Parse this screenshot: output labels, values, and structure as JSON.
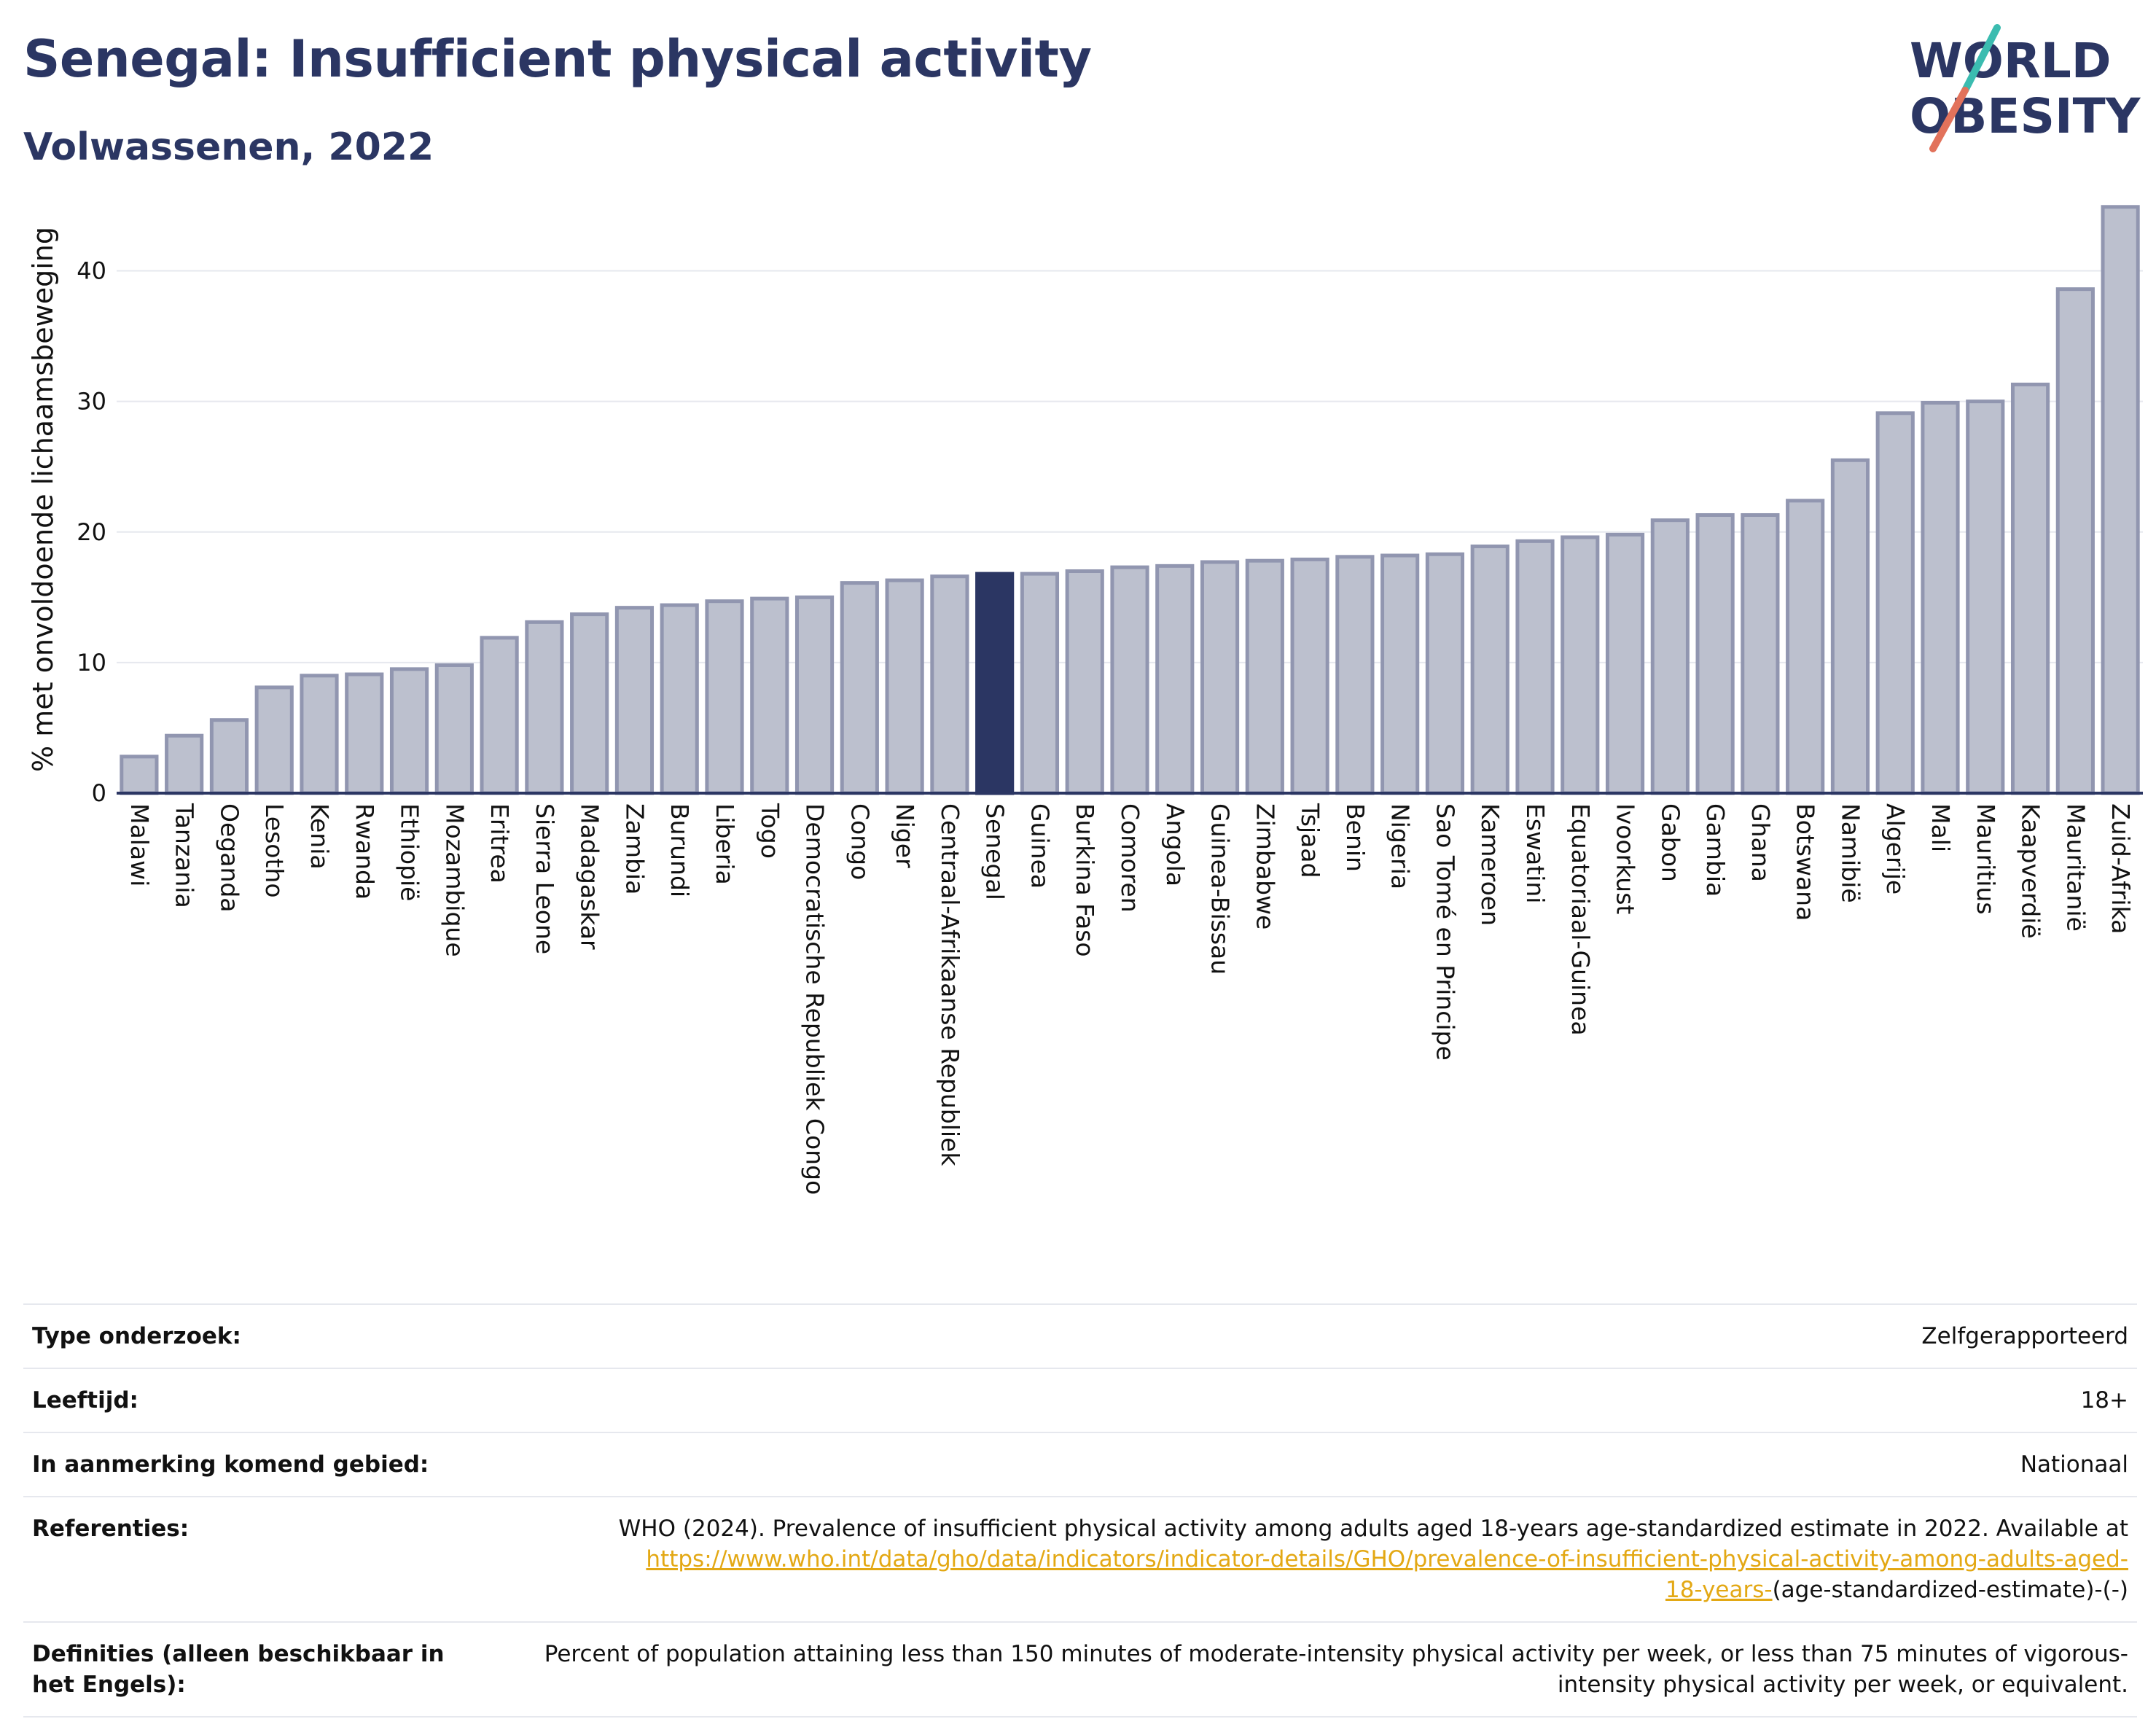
{
  "header": {
    "title": "Senegal: Insufficient physical activity",
    "subtitle": "Volwassenen, 2022"
  },
  "logo": {
    "line1": "WORLD",
    "line2": "OBESITY"
  },
  "chart_data": {
    "type": "bar",
    "title": "Senegal: Insufficient physical activity",
    "subtitle": "Volwassenen, 2022",
    "xlabel": "",
    "ylabel": "% met onvoldoende lichaamsbeweging",
    "ylim": [
      0,
      45
    ],
    "yticks": [
      0,
      10,
      20,
      30,
      40
    ],
    "grid": true,
    "highlight": "Senegal",
    "colors": {
      "bar": "#bcc0ce",
      "bar_border": "#9196b0",
      "highlight": "#2b3663",
      "axis": "#2b3663",
      "grid": "#e6e8ee"
    },
    "categories": [
      "Malawi",
      "Tanzania",
      "Oeganda",
      "Lesotho",
      "Kenia",
      "Rwanda",
      "Ethiopië",
      "Mozambique",
      "Eritrea",
      "Sierra Leone",
      "Madagaskar",
      "Zambia",
      "Burundi",
      "Liberia",
      "Togo",
      "Democratische Republiek Congo",
      "Congo",
      "Niger",
      "Centraal-Afrikaanse Republiek",
      "Senegal",
      "Guinea",
      "Burkina Faso",
      "Comoren",
      "Angola",
      "Guinea-Bissau",
      "Zimbabwe",
      "Tsjaad",
      "Benin",
      "Nigeria",
      "Sao Tomé en Principe",
      "Kameroen",
      "Eswatini",
      "Equatoriaal-Guinea",
      "Ivoorkust",
      "Gabon",
      "Gambia",
      "Ghana",
      "Botswana",
      "Namibië",
      "Algerije",
      "Mali",
      "Mauritius",
      "Kaapverdië",
      "Mauritanië",
      "Zuid-Afrika"
    ],
    "values": [
      2.8,
      4.4,
      5.6,
      8.1,
      9.0,
      9.1,
      9.5,
      9.8,
      11.9,
      13.1,
      13.7,
      14.2,
      14.4,
      14.7,
      14.9,
      15.0,
      16.1,
      16.3,
      16.6,
      16.8,
      16.8,
      17.0,
      17.3,
      17.4,
      17.7,
      17.8,
      17.9,
      18.1,
      18.2,
      18.3,
      18.9,
      19.3,
      19.6,
      19.8,
      20.9,
      21.3,
      21.3,
      22.4,
      25.5,
      29.1,
      29.9,
      30.0,
      31.3,
      38.6,
      44.9
    ]
  },
  "meta": {
    "rows": [
      {
        "key": "Type onderzoek:",
        "value": "Zelfgerapporteerd"
      },
      {
        "key": "Leeftijd:",
        "value": "18+"
      },
      {
        "key": "In aanmerking komend gebied:",
        "value": "Nationaal"
      }
    ],
    "references": {
      "key": "Referenties:",
      "text": "WHO (2024). Prevalence of insufficient physical activity among adults aged 18-years age-standardized estimate in 2022. Available at",
      "link_line1": "https://www.who.int/data/gho/data/indicators/indicator-details/GHO/prevalence-of-insufficient-physical-activity-among-adults-aged-",
      "link_line2": "18-years-",
      "suffix": "(age-standardized-estimate)-(-)"
    },
    "definitions": {
      "key": "Definities (alleen beschikbaar in het Engels):",
      "value": "Percent of population attaining less than 150 minutes of moderate-intensity physical activity per week, or less than 75 minutes of vigorous-intensity physical activity per week, or equivalent."
    }
  }
}
